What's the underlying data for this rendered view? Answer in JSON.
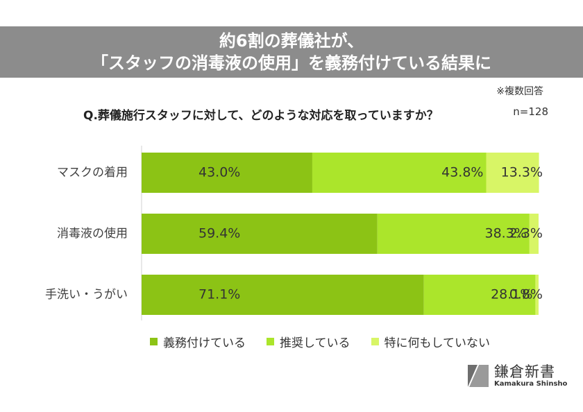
{
  "header": {
    "title_line1": "約6割の葬儀社が、",
    "title_line2": "「スタッフの消毒液の使用」を義務付けている結果に"
  },
  "note": "※複数回答",
  "question": "Q.葬儀施行スタッフに対して、どのような対応を取っていますか？",
  "sample": "n=128",
  "logo": {
    "jp": "鎌倉新書",
    "en": "Kamakura Shinsho",
    "icon": "kamakura-shinsho-logo-icon"
  },
  "colors": {
    "obligated": "#8cc315",
    "recommended": "#abe52b",
    "nothing": "#d8f566"
  },
  "chart_data": {
    "type": "bar",
    "orientation": "horizontal",
    "stacked": true,
    "categories": [
      "マスクの着用",
      "消毒液の使用",
      "手洗い・うがい"
    ],
    "series": [
      {
        "name": "義務付けている",
        "values": [
          43.0,
          59.4,
          71.1
        ],
        "labels": [
          "43.0%",
          "59.4%",
          "71.1%"
        ]
      },
      {
        "name": "推奨している",
        "values": [
          43.8,
          38.3,
          28.1
        ],
        "labels": [
          "43.8%",
          "38.3%",
          "28.1%"
        ]
      },
      {
        "name": "特に何もしていない",
        "values": [
          13.3,
          2.3,
          0.8
        ],
        "labels": [
          "13.3%",
          "2.3%",
          "0.8%"
        ]
      }
    ],
    "xlim": [
      0,
      100
    ],
    "legend": "bottom",
    "grid": false
  }
}
